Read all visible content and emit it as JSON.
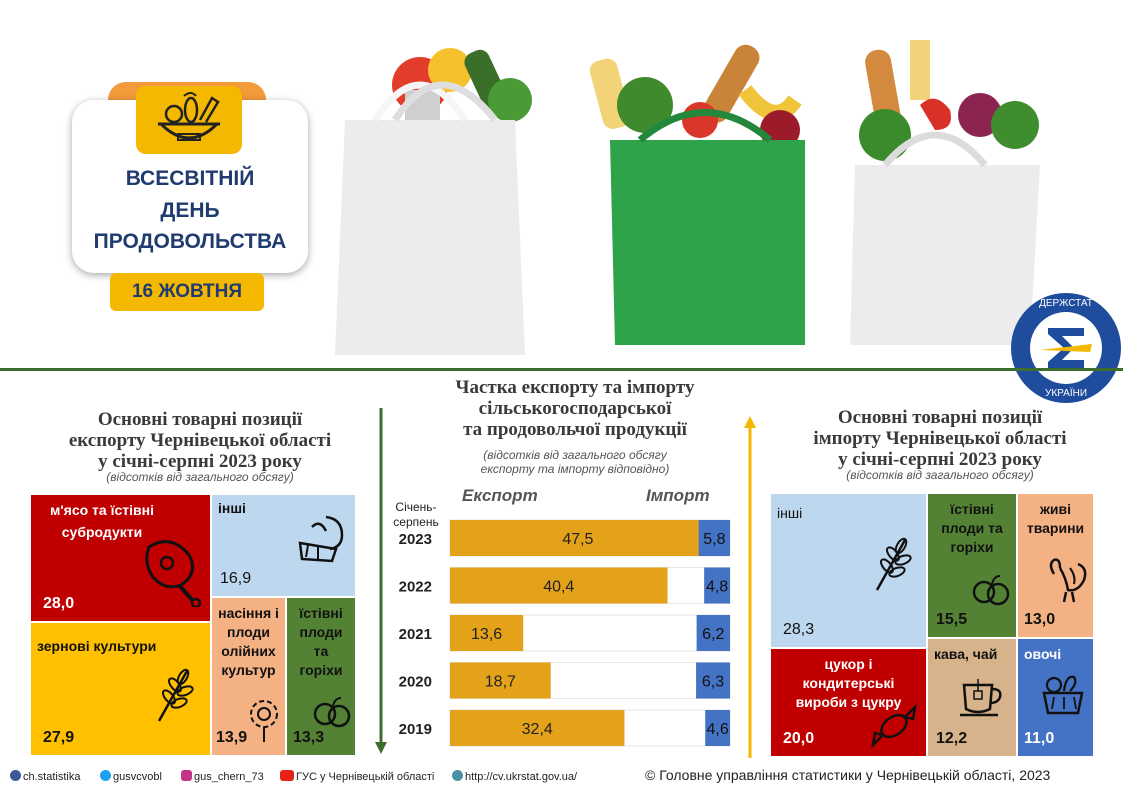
{
  "header": {
    "title_line1": "ВСЕСВІТНІЙ",
    "title_line2": "ДЕНЬ",
    "title_line3": "ПРОДОВОЛЬСТВА",
    "date": "16 ЖОВТНЯ",
    "icon": "food-basket-icon",
    "logo_text": "ДЕРЖСТАТ УКРАЇНИ"
  },
  "export_section": {
    "title_lines": [
      "Основні товарні позиції",
      "експорту Чернівецької області",
      "у січні-серпні 2023 року"
    ],
    "note": "(відсотків від загального обсягу)"
  },
  "import_section": {
    "title_lines": [
      "Основні товарні позиції",
      "імпорту Чернівецької області",
      "у січні-серпні 2023 року"
    ],
    "note": "(відсотків від загального обсягу)"
  },
  "share_section": {
    "title_lines": [
      "Частка експорту та імпорту",
      "сільськогосподарської",
      "та продовольчої продукції"
    ],
    "note_lines": [
      "(відсотків від загального обсягу",
      "експорту та імпорту відповідно)"
    ],
    "export_label": "Експорт",
    "import_label": "Імпорт",
    "period_label_lines": [
      "Січень-",
      "серпень"
    ]
  },
  "chart_data": [
    {
      "type": "treemap",
      "title": "Основні товарні позиції експорту Чернівецької області у січні-серпні 2023 року",
      "unit": "(відсотків від загального обсягу)",
      "items": [
        {
          "label": "м'ясо та їстівні субродукти",
          "value_text": "28,0",
          "value": 28.0,
          "color": "#c00000",
          "icon": "ham-icon"
        },
        {
          "label": "інші",
          "value_text": "16,9",
          "value": 16.9,
          "color": "#bdd7ee",
          "icon": "vegetables-icon"
        },
        {
          "label": "зернові культури",
          "value_text": "27,9",
          "value": 27.9,
          "color": "#ffc000",
          "icon": "wheat-icon"
        },
        {
          "label": "насіння і плоди олійних культур",
          "value_text": "13,9",
          "value": 13.9,
          "color": "#f4b183",
          "icon": "sunflower-icon"
        },
        {
          "label": "їстівні плоди та горіхи",
          "value_text": "13,3",
          "value": 13.3,
          "color": "#548235",
          "icon": "fruits-icon"
        }
      ]
    },
    {
      "type": "bar",
      "title": "Частка експорту та імпорту сільськогосподарської та продовольчої продукції",
      "categories": [
        "2023",
        "2022",
        "2021",
        "2020",
        "2019"
      ],
      "series": [
        {
          "name": "Експорт",
          "values": [
            47.5,
            40.4,
            13.6,
            18.7,
            32.4
          ],
          "labels": [
            "47,5",
            "40,4",
            "13,6",
            "18,7",
            "32,4"
          ],
          "color": "#e3a21a"
        },
        {
          "name": "Імпорт",
          "values": [
            5.8,
            4.8,
            6.2,
            6.3,
            4.6
          ],
          "labels": [
            "5,8",
            "4,8",
            "6,2",
            "6,3",
            "4,6"
          ],
          "color": "#4472c4"
        }
      ]
    },
    {
      "type": "treemap",
      "title": "Основні товарні позиції імпорту Чернівецької області у січні-серпні 2023 року",
      "unit": "(відсотків від загального обсягу)",
      "items": [
        {
          "label": "інші",
          "value_text": "28,3",
          "value": 28.3,
          "color": "#bdd7ee",
          "icon": "wheat-icon"
        },
        {
          "label": "їстівні плоди та горіхи",
          "value_text": "15,5",
          "value": 15.5,
          "color": "#548235",
          "icon": "fruits-icon"
        },
        {
          "label": "живі тварини",
          "value_text": "13,0",
          "value": 13.0,
          "color": "#f4b183",
          "icon": "turkey-icon"
        },
        {
          "label": "цукор і кондитерські вироби з цукру",
          "value_text": "20,0",
          "value": 20.0,
          "color": "#c00000",
          "icon": "candy-icon"
        },
        {
          "label": "кава, чай",
          "value_text": "12,2",
          "value": 12.2,
          "color": "#d6b38a",
          "icon": "tea-cup-icon"
        },
        {
          "label": "овочі",
          "value_text": "11,0",
          "value": 11.0,
          "color": "#4472c4",
          "icon": "vegetables-basket-icon"
        }
      ]
    }
  ],
  "footer": {
    "facebook": "ch.statistika",
    "twitter": "gusvcvobl",
    "instagram": "gus_chern_73",
    "youtube": "ГУС у Чернівецькій області",
    "website": "http://cv.ukrstat.gov.ua/",
    "copyright": "© Головне управління статистики у Чернівецькій  області, 2023"
  }
}
